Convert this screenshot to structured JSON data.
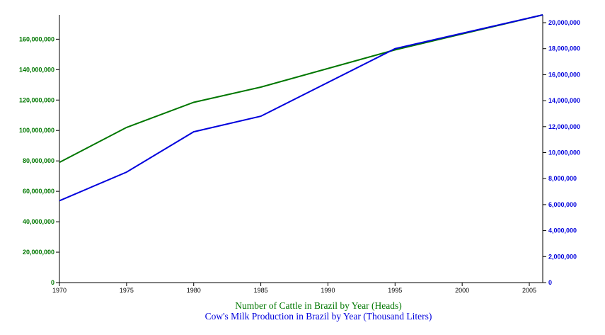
{
  "chart_data": {
    "type": "line",
    "x": [
      1970,
      1975,
      1980,
      1985,
      1995,
      2006
    ],
    "x_ticks": [
      "1970",
      "1975",
      "1980",
      "1985",
      "1990",
      "1995",
      "2000",
      "2005"
    ],
    "xlim": [
      1970,
      2006
    ],
    "series": [
      {
        "name": "Number of Cattle in Brazil by Year (Heads)",
        "axis": "left",
        "color": "#007700",
        "values": [
          79000000,
          102000000,
          118500000,
          128500000,
          153000000,
          176000000
        ]
      },
      {
        "name": "Cow's Milk Production in Brazil by Year (Thousand Liters)",
        "axis": "right",
        "color": "#0000dd",
        "values": [
          6300000,
          8500000,
          11600000,
          12800000,
          18000000,
          20600000
        ]
      }
    ],
    "left_axis": {
      "ylim": [
        0,
        176000000
      ],
      "ticks": [
        0,
        20000000,
        40000000,
        60000000,
        80000000,
        100000000,
        120000000,
        140000000,
        160000000
      ],
      "tick_labels": [
        "0",
        "20,000,000",
        "40,000,000",
        "60,000,000",
        "80,000,000",
        "100,000,000",
        "120,000,000",
        "140,000,000",
        "160,000,000"
      ],
      "color": "#007700"
    },
    "right_axis": {
      "ylim": [
        0,
        20600000
      ],
      "ticks": [
        0,
        2000000,
        4000000,
        6000000,
        8000000,
        10000000,
        12000000,
        14000000,
        16000000,
        18000000,
        20000000
      ],
      "tick_labels": [
        "0",
        "2,000,000",
        "4,000,000",
        "6,000,000",
        "8,000,000",
        "10,000,000",
        "12,000,000",
        "14,000,000",
        "16,000,000",
        "18,000,000",
        "20,000,000"
      ],
      "color": "#0000dd"
    },
    "captions": [
      "Number of Cattle in Brazil by Year (Heads)",
      "Cow's Milk Production in Brazil by Year (Thousand Liters)"
    ],
    "grid": false
  }
}
